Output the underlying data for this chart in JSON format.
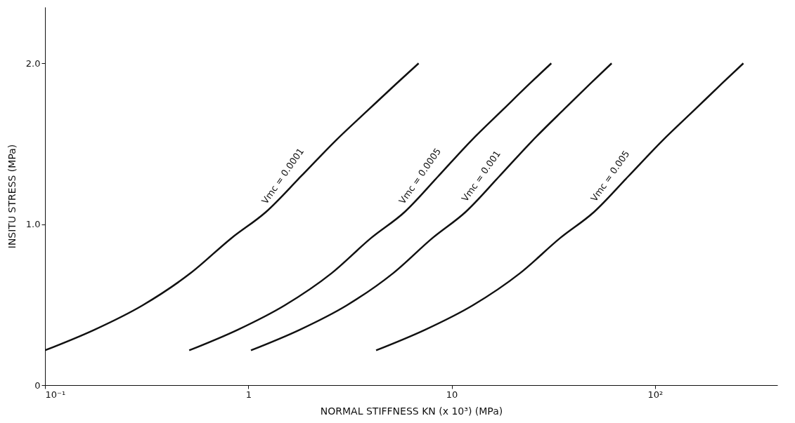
{
  "chart_data": {
    "type": "line",
    "xlabel": "NORMAL STIFFNESS KN (x 10³) (MPa)",
    "ylabel": "INSITU STRESS (MPa)",
    "log": "x",
    "xlim": [
      0.1,
      400
    ],
    "ylim": [
      0,
      2.35
    ],
    "xticks": [
      {
        "value": 0.1,
        "label": "10⁻¹"
      },
      1,
      10,
      {
        "value": 100,
        "label": "10²"
      }
    ],
    "yticks": [
      0,
      {
        "value": 1,
        "label": "1.0"
      },
      {
        "value": 2,
        "label": "2.0"
      }
    ],
    "grid": false,
    "legend": false,
    "marker": "none",
    "line_style": "solid",
    "series": [
      {
        "name": "Vmc = 0.0001",
        "color": "#111111",
        "x": [
          0.1,
          0.175,
          0.302,
          0.52,
          0.83,
          1.22,
          1.81,
          2.67,
          3.93,
          5.37,
          6.88
        ],
        "values": [
          0.216,
          0.344,
          0.496,
          0.696,
          0.916,
          1.076,
          1.296,
          1.516,
          1.716,
          1.876,
          2.0
        ]
      },
      {
        "name": "Vmc = 0.0005",
        "color": "#111111",
        "x": [
          0.512,
          0.887,
          1.51,
          2.57,
          4.03,
          5.87,
          8.56,
          12.4,
          18.0,
          24.3,
          30.9
        ],
        "values": [
          0.216,
          0.344,
          0.496,
          0.696,
          0.916,
          1.076,
          1.296,
          1.516,
          1.716,
          1.876,
          2.0
        ]
      },
      {
        "name": "Vmc = 0.001",
        "color": "#111111",
        "x": [
          1.03,
          1.79,
          3.05,
          5.16,
          8.08,
          11.7,
          17.1,
          24.8,
          35.8,
          48.3,
          61.2
        ],
        "values": [
          0.216,
          0.344,
          0.496,
          0.696,
          0.916,
          1.076,
          1.296,
          1.516,
          1.716,
          1.876,
          2.0
        ]
      },
      {
        "name": "Vmc = 0.005",
        "color": "#111111",
        "x": [
          4.25,
          7.4,
          12.7,
          21.7,
          34.3,
          50.1,
          73.7,
          108,
          158,
          214,
          272
        ],
        "values": [
          0.216,
          0.344,
          0.496,
          0.696,
          0.916,
          1.076,
          1.296,
          1.516,
          1.716,
          1.876,
          2.0
        ]
      }
    ]
  }
}
